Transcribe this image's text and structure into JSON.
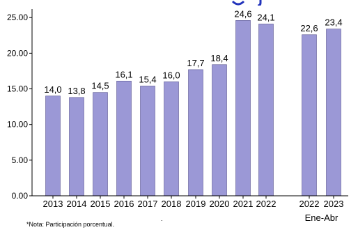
{
  "colors": {
    "bar_fill": "#9b98d6",
    "bar_stroke": "#5a5690",
    "title_fragment": "#2233bb",
    "axis": "#000000"
  },
  "footnote": "*Nota: Participación porcentual.",
  "chart_data": {
    "type": "bar",
    "title": "",
    "xlabel": "",
    "ylabel": "",
    "ylim": [
      0,
      26
    ],
    "yticks": [
      "0.00",
      "5.00",
      "10.00",
      "15.00",
      "20.00",
      "25.00"
    ],
    "ytick_values": [
      0,
      5,
      10,
      15,
      20,
      25
    ],
    "grid": false,
    "legend": "none",
    "categories": [
      "2013",
      "2014",
      "2015",
      "2016",
      "2017",
      "2018",
      "2019",
      "2020",
      "2021",
      "2022",
      "2022",
      "2023"
    ],
    "values": [
      14.0,
      13.8,
      14.5,
      16.1,
      15.4,
      16.0,
      17.7,
      18.4,
      24.6,
      24.1,
      22.6,
      23.4
    ],
    "data_labels": [
      "14,0",
      "13,8",
      "14,5",
      "16,1",
      "15,4",
      "16,0",
      "17,7",
      "18,4",
      "24,6",
      "24,1",
      "22,6",
      "23,4"
    ],
    "group_label": "Ene-Abr",
    "group_label_applies_to": [
      "2022",
      "2023"
    ]
  }
}
